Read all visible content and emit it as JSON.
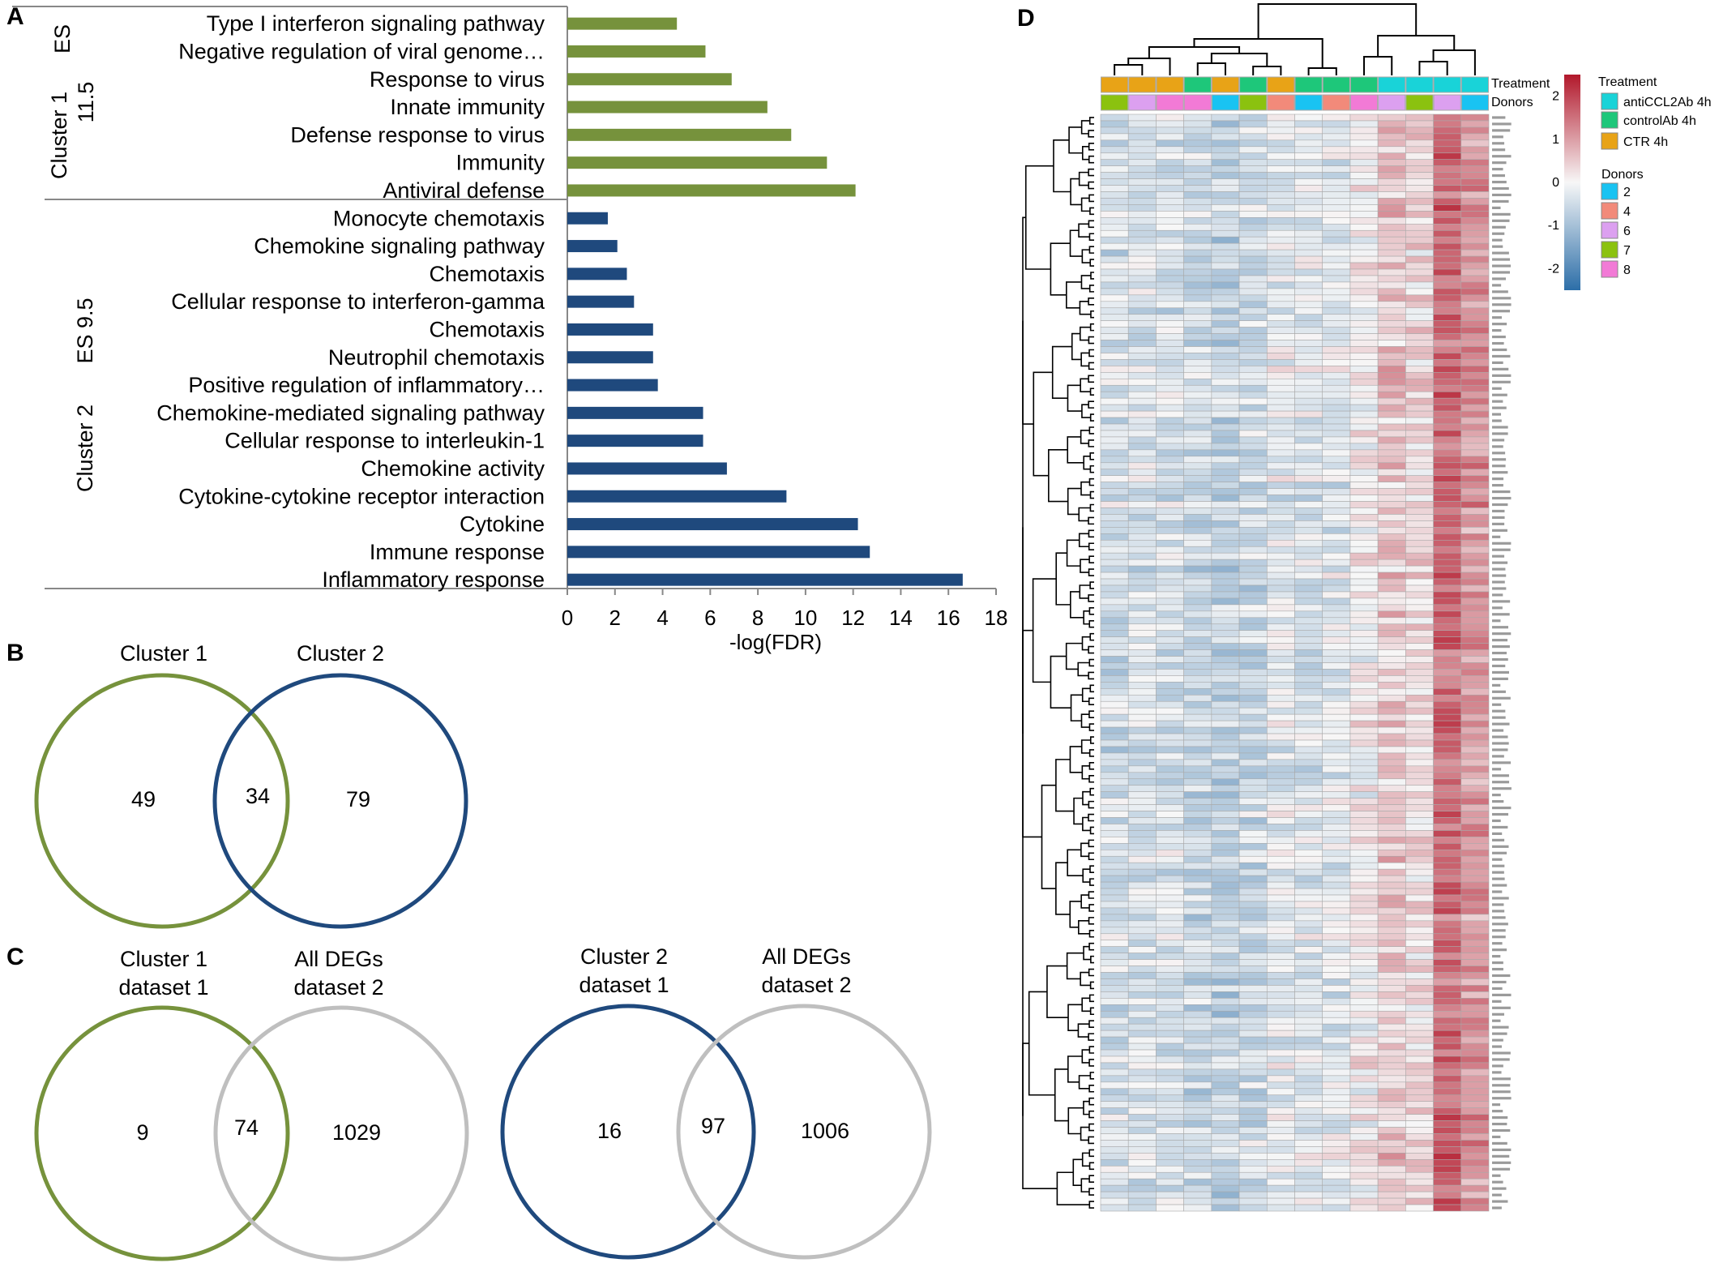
{
  "colors": {
    "cluster1": "#76923c",
    "cluster2": "#1f497d",
    "alldegs": "#bfbfbf",
    "heat_low": "#2c6ea8",
    "heat_mid": "#f7f7f7",
    "heat_high": "#b2182b",
    "treat_anti": "#19d3d8",
    "treat_control": "#1ec77a",
    "treat_ctr": "#e8a317",
    "donor2": "#19c3f2",
    "donor4": "#f28a7a",
    "donor6": "#dca0f0",
    "donor7": "#8bc20f",
    "donor8": "#f27ad6"
  },
  "panels": {
    "a": "A",
    "b": "B",
    "c": "C",
    "d": "D"
  },
  "chart_data": [
    {
      "type": "bar",
      "orientation": "horizontal",
      "xlabel": "-log(FDR)",
      "xlim": [
        0,
        18
      ],
      "xticks": [
        "0",
        "2",
        "4",
        "6",
        "8",
        "10",
        "12",
        "14",
        "16",
        "18"
      ],
      "groups": [
        {
          "label": "Cluster 1",
          "es_label": "ES",
          "es_value": "11.5",
          "color": "#76923c",
          "categories": [
            "Type I interferon signaling pathway",
            "Negative regulation of viral genome…",
            "Response to virus",
            "Innate immunity",
            "Defense response to virus",
            "Immunity",
            "Antiviral defense"
          ],
          "values": [
            4.6,
            5.8,
            6.9,
            8.4,
            9.4,
            10.9,
            12.1
          ]
        },
        {
          "label": "Cluster 2",
          "es_label": "ES 9.5",
          "color": "#1f497d",
          "categories": [
            "Monocyte chemotaxis",
            "Chemokine signaling pathway",
            "Chemotaxis",
            "Cellular response to interferon-gamma",
            "Chemotaxis",
            "Neutrophil chemotaxis",
            "Positive regulation of inflammatory…",
            "Chemokine-mediated signaling pathway",
            "Cellular response to interleukin-1",
            "Chemokine activity",
            "Cytokine-cytokine receptor interaction",
            "Cytokine",
            "Immune response",
            "Inflammatory response"
          ],
          "values": [
            1.7,
            2.1,
            2.5,
            2.8,
            3.6,
            3.6,
            3.8,
            5.7,
            5.7,
            6.7,
            9.2,
            12.2,
            12.7,
            16.6
          ]
        }
      ]
    },
    {
      "type": "venn",
      "sets": [
        "Cluster 1",
        "Cluster 2"
      ],
      "only_left": "49",
      "overlap": "34",
      "only_right": "79"
    },
    {
      "type": "venn",
      "sets": [
        "Cluster 1\ndataset 1",
        "All DEGs\ndataset 2"
      ],
      "only_left": "9",
      "overlap": "74",
      "only_right": "1029"
    },
    {
      "type": "venn",
      "sets": [
        "Cluster 2\ndataset 1",
        "All DEGs\ndataset 2"
      ],
      "only_left": "16",
      "overlap": "97",
      "only_right": "1006"
    },
    {
      "type": "heatmap",
      "columns": 14,
      "rows": 170,
      "scale_range": [
        -2.5,
        2.5
      ],
      "scale_ticks": [
        "2",
        "1",
        "0",
        "-1",
        "-2"
      ],
      "annotation_labels": [
        "Treatment",
        "Donors"
      ],
      "column_treatment": [
        "ctr",
        "ctr",
        "ctr",
        "control",
        "ctr",
        "control",
        "ctr",
        "control",
        "control",
        "control",
        "anti",
        "anti",
        "anti",
        "anti"
      ],
      "column_donor": [
        "7",
        "6",
        "8",
        "8",
        "2",
        "7",
        "4",
        "2",
        "4",
        "8",
        "6",
        "7",
        "6",
        "2"
      ],
      "column_bias": [
        -0.45,
        -0.4,
        -0.4,
        -0.55,
        -0.7,
        -0.55,
        -0.25,
        -0.3,
        -0.25,
        0.05,
        0.55,
        0.3,
        1.6,
        1.1
      ],
      "legend_treatment": {
        "title": "Treatment",
        "items": [
          {
            "label": "antiCCL2Ab 4h",
            "key": "anti"
          },
          {
            "label": "controlAb 4h",
            "key": "control"
          },
          {
            "label": "CTR 4h",
            "key": "ctr"
          }
        ]
      },
      "legend_donors": {
        "title": "Donors",
        "items": [
          "2",
          "4",
          "6",
          "7",
          "8"
        ]
      }
    }
  ]
}
